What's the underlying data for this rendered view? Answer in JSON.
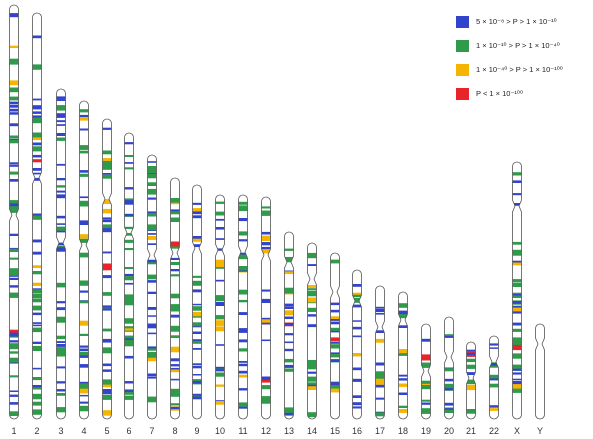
{
  "legend": [
    {
      "color": "#3344cc",
      "label": "5 × 10⁻⁸ > P > 1 × 10⁻¹⁰"
    },
    {
      "color": "#2e9a4a",
      "label": "1 × 10⁻¹⁰ > P > 1 × 10⁻⁴⁰"
    },
    {
      "color": "#f5b400",
      "label": "1 × 10⁻⁴⁰ > P > 1 × 10⁻¹⁰⁰"
    },
    {
      "color": "#e8232a",
      "label": "P < 1 × 10⁻¹⁰⁰"
    }
  ],
  "chromosomes": [
    {
      "label": "1"
    },
    {
      "label": "2"
    },
    {
      "label": "3"
    },
    {
      "label": "4"
    },
    {
      "label": "5"
    },
    {
      "label": "6"
    },
    {
      "label": "7"
    },
    {
      "label": "8"
    },
    {
      "label": "9"
    },
    {
      "label": "10"
    },
    {
      "label": "11"
    },
    {
      "label": "12"
    },
    {
      "label": "13"
    },
    {
      "label": "14"
    },
    {
      "label": "15"
    },
    {
      "label": "16"
    },
    {
      "label": "17"
    },
    {
      "label": "18"
    },
    {
      "label": "19"
    },
    {
      "label": "20"
    },
    {
      "label": "21"
    },
    {
      "label": "22"
    },
    {
      "label": "X"
    },
    {
      "label": "Y"
    }
  ]
}
